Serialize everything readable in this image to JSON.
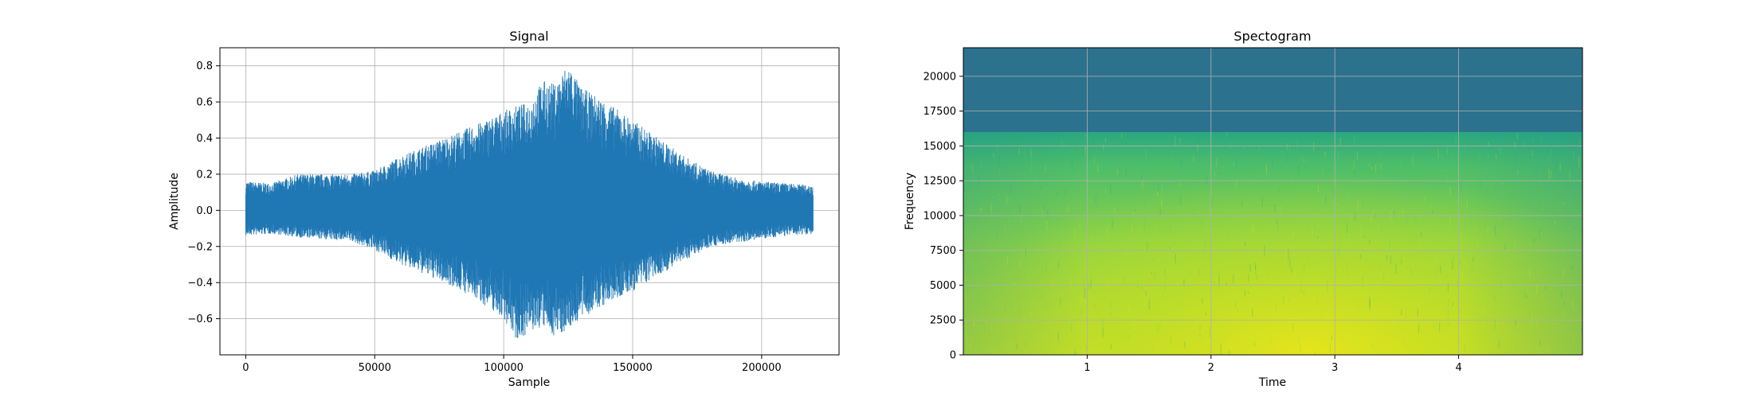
{
  "chart_data": [
    {
      "type": "line",
      "title": "Signal",
      "xlabel": "Sample",
      "ylabel": "Amplitude",
      "xlim": [
        -10000,
        230000
      ],
      "ylim": [
        -0.8,
        0.9
      ],
      "xticks": [
        "0",
        "50000",
        "100000",
        "150000",
        "200000"
      ],
      "yticks": [
        "−0.6",
        "−0.4",
        "−0.2",
        "0.0",
        "0.2",
        "0.4",
        "0.6",
        "0.8"
      ],
      "grid": true,
      "color": "#1f77b4",
      "series": [
        {
          "x": [
            0,
            10000,
            20000,
            30000,
            40000,
            50000,
            60000,
            70000,
            80000,
            90000,
            100000,
            105000,
            110000,
            115000,
            120000,
            125000,
            130000,
            140000,
            150000,
            160000,
            170000,
            180000,
            190000,
            200000,
            210000,
            220000
          ],
          "y_max": [
            0.16,
            0.15,
            0.2,
            0.2,
            0.2,
            0.22,
            0.3,
            0.36,
            0.42,
            0.48,
            0.55,
            0.58,
            0.6,
            0.72,
            0.7,
            0.82,
            0.68,
            0.6,
            0.5,
            0.4,
            0.3,
            0.22,
            0.18,
            0.16,
            0.15,
            0.14
          ],
          "y_min": [
            -0.14,
            -0.13,
            -0.15,
            -0.16,
            -0.17,
            -0.22,
            -0.3,
            -0.36,
            -0.42,
            -0.5,
            -0.6,
            -0.72,
            -0.68,
            -0.65,
            -0.7,
            -0.66,
            -0.6,
            -0.52,
            -0.45,
            -0.36,
            -0.28,
            -0.2,
            -0.18,
            -0.16,
            -0.14,
            -0.13
          ]
        }
      ]
    },
    {
      "type": "heatmap",
      "title": "Spectogram",
      "xlabel": "Time",
      "ylabel": "Frequency",
      "xlim": [
        0,
        5
      ],
      "ylim": [
        0,
        22050
      ],
      "xticks": [
        "1",
        "2",
        "3",
        "4"
      ],
      "yticks": [
        "0",
        "2500",
        "5000",
        "7500",
        "10000",
        "12500",
        "15000",
        "17500",
        "20000"
      ],
      "grid": true,
      "colormap": "viridis",
      "cutoff_frequency": 16000,
      "peak_time": 2.8,
      "colors": {
        "high": "#dde318",
        "mid": "#7ad151",
        "low": "#22a884",
        "top_band": "#2c728e"
      }
    }
  ]
}
